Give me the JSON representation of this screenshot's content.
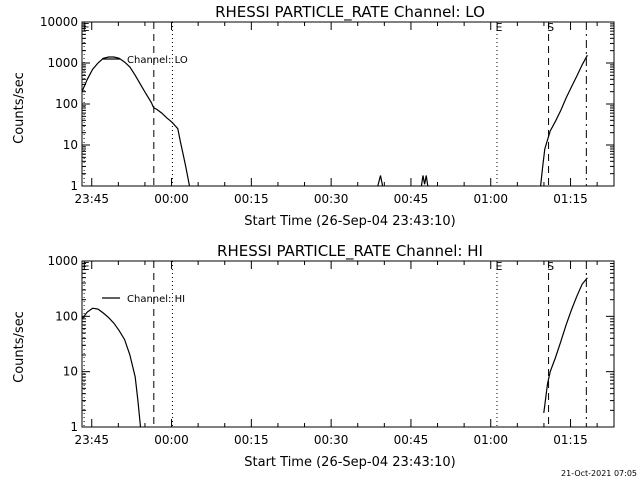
{
  "footer_text": "21-Oct-2021 07:05",
  "chart_data": [
    {
      "type": "line",
      "title": "RHESSI PARTICLE_RATE Channel: LO",
      "xlabel": "Start Time (26-Sep-04 23:43:10)",
      "ylabel": "Counts/sec",
      "y_scale": "log",
      "ylim": [
        1,
        10000
      ],
      "xlim_minutes_from_start": [
        0,
        100
      ],
      "x_ticks": [
        {
          "label": "23:45",
          "minute": 1.83
        },
        {
          "label": "00:00",
          "minute": 16.83
        },
        {
          "label": "00:15",
          "minute": 31.83
        },
        {
          "label": "00:30",
          "minute": 46.83
        },
        {
          "label": "00:45",
          "minute": 61.83
        },
        {
          "label": "01:00",
          "minute": 76.83
        },
        {
          "label": "01:15",
          "minute": 91.83
        }
      ],
      "y_ticks": [
        {
          "label": "1",
          "value": 1
        },
        {
          "label": "10",
          "value": 10
        },
        {
          "label": "100",
          "value": 100
        },
        {
          "label": "1000",
          "value": 1000
        },
        {
          "label": "10000",
          "value": 10000
        }
      ],
      "legend": {
        "position": "top-left",
        "entries": [
          "Channel: LO"
        ]
      },
      "markers": [
        {
          "letter": "E",
          "minute": 0.4,
          "style": "dotted"
        },
        {
          "letter": "",
          "minute": 13.5,
          "style": "dashed"
        },
        {
          "letter": "",
          "minute": 17.0,
          "style": "dotted"
        },
        {
          "letter": "E",
          "minute": 78.0,
          "style": "dotted"
        },
        {
          "letter": "S",
          "minute": 87.7,
          "style": "dashed"
        },
        {
          "letter": "",
          "minute": 94.8,
          "style": "dashdot"
        }
      ],
      "series": [
        {
          "name": "Channel: LO",
          "segments": [
            [
              [
                0,
                200
              ],
              [
                1,
                400
              ],
              [
                2,
                700
              ],
              [
                3,
                1000
              ],
              [
                4,
                1300
              ],
              [
                5,
                1400
              ],
              [
                6,
                1400
              ],
              [
                7,
                1300
              ],
              [
                8,
                1050
              ],
              [
                9,
                800
              ],
              [
                10,
                500
              ],
              [
                11,
                300
              ],
              [
                12,
                180
              ],
              [
                13,
                110
              ],
              [
                13.5,
                80
              ],
              [
                14,
                75
              ],
              [
                15,
                60
              ],
              [
                16,
                45
              ],
              [
                16.5,
                40
              ],
              [
                17,
                35
              ],
              [
                18,
                25
              ],
              [
                18.5,
                12
              ],
              [
                19,
                6
              ],
              [
                19.5,
                3
              ],
              [
                20.2,
                1
              ]
            ],
            [
              [
                55.6,
                1
              ],
              [
                56.1,
                1.8
              ],
              [
                56.5,
                1
              ]
            ],
            [
              [
                63.8,
                1
              ],
              [
                64.1,
                1.8
              ],
              [
                64.4,
                1.1
              ],
              [
                64.7,
                1.8
              ],
              [
                65.0,
                1
              ]
            ],
            [
              [
                86.2,
                1
              ],
              [
                86.6,
                3
              ],
              [
                87.0,
                8
              ],
              [
                88.0,
                22
              ],
              [
                89,
                38
              ],
              [
                90,
                70
              ],
              [
                91,
                140
              ],
              [
                92,
                260
              ],
              [
                93,
                480
              ],
              [
                94,
                900
              ],
              [
                95,
                1550
              ]
            ]
          ]
        }
      ]
    },
    {
      "type": "line",
      "title": "RHESSI PARTICLE_RATE Channel: HI",
      "xlabel": "Start Time (26-Sep-04 23:43:10)",
      "ylabel": "Counts/sec",
      "y_scale": "log",
      "ylim": [
        1,
        1000
      ],
      "xlim_minutes_from_start": [
        0,
        100
      ],
      "x_ticks": [
        {
          "label": "23:45",
          "minute": 1.83
        },
        {
          "label": "00:00",
          "minute": 16.83
        },
        {
          "label": "00:15",
          "minute": 31.83
        },
        {
          "label": "00:30",
          "minute": 46.83
        },
        {
          "label": "00:45",
          "minute": 61.83
        },
        {
          "label": "01:00",
          "minute": 76.83
        },
        {
          "label": "01:15",
          "minute": 91.83
        }
      ],
      "y_ticks": [
        {
          "label": "1",
          "value": 1
        },
        {
          "label": "10",
          "value": 10
        },
        {
          "label": "100",
          "value": 100
        },
        {
          "label": "1000",
          "value": 1000
        }
      ],
      "legend": {
        "position": "top-left",
        "entries": [
          "Channel: HI"
        ]
      },
      "markers": [
        {
          "letter": "E",
          "minute": 0.4,
          "style": "dotted"
        },
        {
          "letter": "",
          "minute": 13.5,
          "style": "dashed"
        },
        {
          "letter": "",
          "minute": 17.0,
          "style": "dotted"
        },
        {
          "letter": "E",
          "minute": 78.0,
          "style": "dotted"
        },
        {
          "letter": "S",
          "minute": 87.7,
          "style": "dashed"
        },
        {
          "letter": "",
          "minute": 94.8,
          "style": "dashdot"
        }
      ],
      "series": [
        {
          "name": "Channel: HI",
          "segments": [
            [
              [
                0,
                90
              ],
              [
                1,
                120
              ],
              [
                2,
                140
              ],
              [
                3,
                135
              ],
              [
                4,
                115
              ],
              [
                5,
                95
              ],
              [
                6,
                75
              ],
              [
                7,
                55
              ],
              [
                8,
                38
              ],
              [
                9,
                20
              ],
              [
                10,
                8
              ],
              [
                10.5,
                3
              ],
              [
                11.0,
                1
              ]
            ],
            [
              [
                86.8,
                1.8
              ],
              [
                87.5,
                6
              ],
              [
                88,
                10
              ],
              [
                89,
                18
              ],
              [
                90,
                35
              ],
              [
                91,
                70
              ],
              [
                92,
                130
              ],
              [
                93,
                230
              ],
              [
                94,
                380
              ],
              [
                95,
                500
              ]
            ]
          ]
        }
      ]
    }
  ]
}
